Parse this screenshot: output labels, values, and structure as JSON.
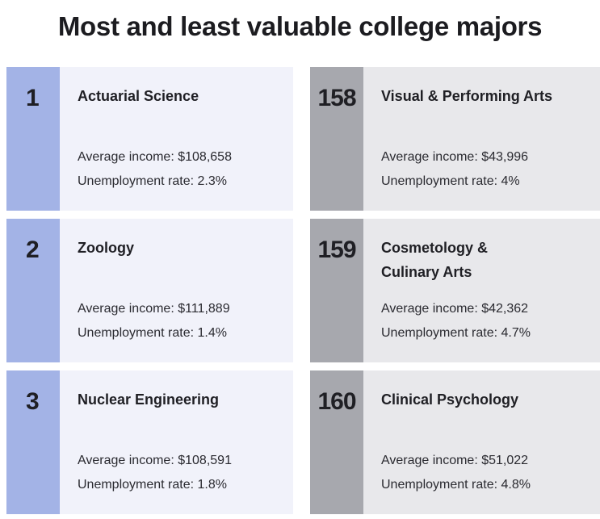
{
  "title": "Most and least valuable college majors",
  "income_label": "Average income:",
  "unemployment_label": "Unemployment rate:",
  "most_valuable": [
    {
      "rank": "1",
      "major": "Actuarial Science",
      "income": "$108,658",
      "unemployment": "2.3%"
    },
    {
      "rank": "2",
      "major": "Zoology",
      "income": "$111,889",
      "unemployment": "1.4%"
    },
    {
      "rank": "3",
      "major": "Nuclear Engineering",
      "income": "$108,591",
      "unemployment": "1.8%"
    }
  ],
  "least_valuable": [
    {
      "rank": "158",
      "major": "Visual & Performing Arts",
      "income": "$43,996",
      "unemployment": "4%"
    },
    {
      "rank": "159",
      "major": "Cosmetology & Culinary Arts",
      "income": "$42,362",
      "unemployment": "4.7%"
    },
    {
      "rank": "160",
      "major": "Clinical Psychology",
      "income": "$51,022",
      "unemployment": "4.8%"
    }
  ],
  "colors": {
    "most_rank_bg": "#a3b3e6",
    "most_card_bg": "#f1f2fa",
    "least_rank_bg": "#a7a8ae",
    "least_card_bg": "#e8e8eb"
  }
}
